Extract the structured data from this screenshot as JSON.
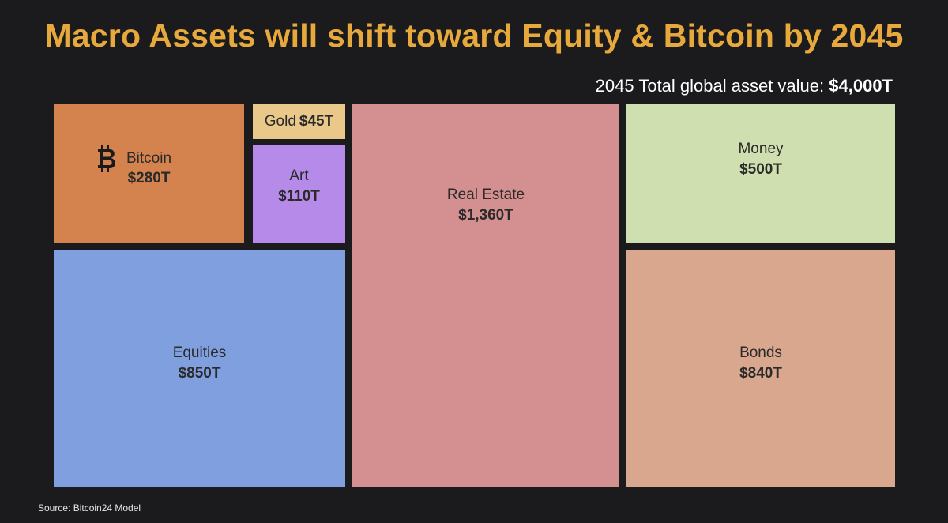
{
  "title": "Macro Assets will shift toward Equity & Bitcoin by 2045",
  "total": {
    "label": "2045 Total global asset value: ",
    "value": "$4,000T"
  },
  "source": "Source: Bitcoin24 Model",
  "colors": {
    "bitcoin": "#d4834f",
    "gold": "#e9c88a",
    "art": "#b68ae9",
    "equities": "#7f9fdf",
    "real_estate": "#d49090",
    "money": "#cfdfb0",
    "bonds": "#d8a78e",
    "title": "#e8a93c"
  },
  "chart_data": {
    "type": "treemap",
    "title": "Macro Assets will shift toward Equity & Bitcoin by 2045",
    "units": "trillion USD",
    "total": 4000,
    "items": [
      {
        "name": "Bitcoin",
        "value": 280,
        "label": "$280T",
        "icon": "bitcoin-icon"
      },
      {
        "name": "Gold",
        "value": 45,
        "label": "$45T"
      },
      {
        "name": "Art",
        "value": 110,
        "label": "$110T"
      },
      {
        "name": "Equities",
        "value": 850,
        "label": "$850T"
      },
      {
        "name": "Real Estate",
        "value": 1360,
        "label": "$1,360T"
      },
      {
        "name": "Money",
        "value": 500,
        "label": "$500T"
      },
      {
        "name": "Bonds",
        "value": 840,
        "label": "$840T"
      }
    ]
  }
}
